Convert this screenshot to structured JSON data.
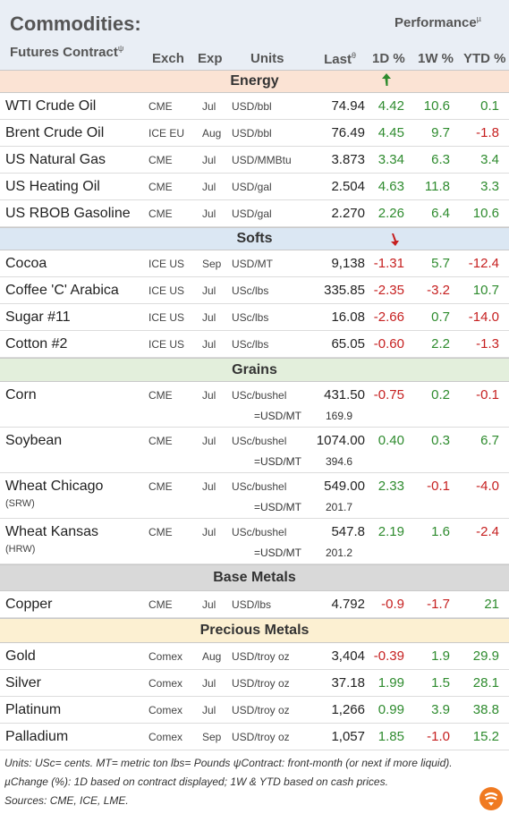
{
  "header": {
    "title": "Commodities:",
    "subtitle": "Futures Contract",
    "subtitle_sup": "ψ",
    "performance": "Performance",
    "performance_sup": "µ",
    "col_exch": "Exch",
    "col_exp": "Exp",
    "col_units": "Units",
    "col_last": "Last",
    "col_last_sup": "θ",
    "col_1d": "1D %",
    "col_1w": "1W %",
    "col_ytd": "YTD %"
  },
  "sections": {
    "energy": "Energy",
    "softs": "Softs",
    "grains": "Grains",
    "base_metals": "Base Metals",
    "precious_metals": "Precious Metals"
  },
  "colors": {
    "energy_band": "#fbe3d4",
    "softs_band": "#dbe7f3",
    "grains_band": "#e3efdc",
    "base_band": "#d9d9d9",
    "precious_band": "#fcf0d2",
    "positive": "#2e8b2e",
    "negative": "#c62020"
  },
  "energy": [
    {
      "name": "WTI Crude Oil",
      "exch": "CME",
      "exp": "Jul",
      "units": "USD/bbl",
      "last": "74.94",
      "d1": "4.42",
      "w1": "10.6",
      "ytd": "0.1"
    },
    {
      "name": "Brent Crude Oil",
      "exch": "ICE EU",
      "exp": "Aug",
      "units": "USD/bbl",
      "last": "76.49",
      "d1": "4.45",
      "w1": "9.7",
      "ytd": "-1.8"
    },
    {
      "name": "US Natural Gas",
      "exch": "CME",
      "exp": "Jul",
      "units": "USD/MMBtu",
      "last": "3.873",
      "d1": "3.34",
      "w1": "6.3",
      "ytd": "3.4"
    },
    {
      "name": "US Heating Oil",
      "exch": "CME",
      "exp": "Jul",
      "units": "USD/gal",
      "last": "2.504",
      "d1": "4.63",
      "w1": "11.8",
      "ytd": "3.3"
    },
    {
      "name": "US RBOB Gasoline",
      "exch": "CME",
      "exp": "Jul",
      "units": "USD/gal",
      "last": "2.270",
      "d1": "2.26",
      "w1": "6.4",
      "ytd": "10.6"
    }
  ],
  "softs": [
    {
      "name": "Cocoa",
      "exch": "ICE US",
      "exp": "Sep",
      "units": "USD/MT",
      "last": "9,138",
      "d1": "-1.31",
      "w1": "5.7",
      "ytd": "-12.4"
    },
    {
      "name": "Coffee 'C' Arabica",
      "exch": "ICE US",
      "exp": "Jul",
      "units": "USc/lbs",
      "last": "335.85",
      "d1": "-2.35",
      "w1": "-3.2",
      "ytd": "10.7"
    },
    {
      "name": "Sugar #11",
      "exch": "ICE US",
      "exp": "Jul",
      "units": "USc/lbs",
      "last": "16.08",
      "d1": "-2.66",
      "w1": "0.7",
      "ytd": "-14.0"
    },
    {
      "name": "Cotton #2",
      "exch": "ICE US",
      "exp": "Jul",
      "units": "USc/lbs",
      "last": "65.05",
      "d1": "-0.60",
      "w1": "2.2",
      "ytd": "-1.3"
    }
  ],
  "grains": [
    {
      "name": "Corn",
      "note": "",
      "exch": "CME",
      "exp": "Jul",
      "units": "USc/bushel",
      "last": "431.50",
      "d1": "-0.75",
      "w1": "0.2",
      "ytd": "-0.1",
      "conv_units": "=USD/MT",
      "conv_value": "169.9"
    },
    {
      "name": "Soybean",
      "note": "",
      "exch": "CME",
      "exp": "Jul",
      "units": "USc/bushel",
      "last": "1074.00",
      "d1": "0.40",
      "w1": "0.3",
      "ytd": "6.7",
      "conv_units": "=USD/MT",
      "conv_value": "394.6"
    },
    {
      "name": "Wheat Chicago",
      "note": "(SRW)",
      "exch": "CME",
      "exp": "Jul",
      "units": "USc/bushel",
      "last": "549.00",
      "d1": "2.33",
      "w1": "-0.1",
      "ytd": "-4.0",
      "conv_units": "=USD/MT",
      "conv_value": "201.7"
    },
    {
      "name": "Wheat Kansas",
      "note": "(HRW)",
      "exch": "CME",
      "exp": "Jul",
      "units": "USc/bushel",
      "last": "547.8",
      "d1": "2.19",
      "w1": "1.6",
      "ytd": "-2.4",
      "conv_units": "=USD/MT",
      "conv_value": "201.2"
    }
  ],
  "base_metals": [
    {
      "name": "Copper",
      "exch": "CME",
      "exp": "Jul",
      "units": "USD/lbs",
      "last": "4.792",
      "d1": "-0.9",
      "w1": "-1.7",
      "ytd": "21"
    }
  ],
  "precious_metals": [
    {
      "name": "Gold",
      "exch": "Comex",
      "exp": "Aug",
      "units": "USD/troy oz",
      "last": "3,404",
      "d1": "-0.39",
      "w1": "1.9",
      "ytd": "29.9"
    },
    {
      "name": "Silver",
      "exch": "Comex",
      "exp": "Jul",
      "units": "USD/troy oz",
      "last": "37.18",
      "d1": "1.99",
      "w1": "1.5",
      "ytd": "28.1"
    },
    {
      "name": "Platinum",
      "exch": "Comex",
      "exp": "Jul",
      "units": "USD/troy oz",
      "last": "1,266",
      "d1": "0.99",
      "w1": "3.9",
      "ytd": "38.8"
    },
    {
      "name": "Palladium",
      "exch": "Comex",
      "exp": "Sep",
      "units": "USD/troy oz",
      "last": "1,057",
      "d1": "1.85",
      "w1": "-1.0",
      "ytd": "15.2"
    }
  ],
  "footnotes": {
    "line1": "Units: USc= cents.   MT= metric ton    lbs= Pounds  ψContract: front-month (or next if more liquid).",
    "line2": "µChange (%): 1D based on contract displayed; 1W & YTD based on cash prices.",
    "line3": "Sources: CME, ICE, LME."
  },
  "icons": {
    "energy_arrow": "up-arrow-icon",
    "softs_arrow": "down-arrow-icon",
    "logo": "brand-logo-icon"
  }
}
